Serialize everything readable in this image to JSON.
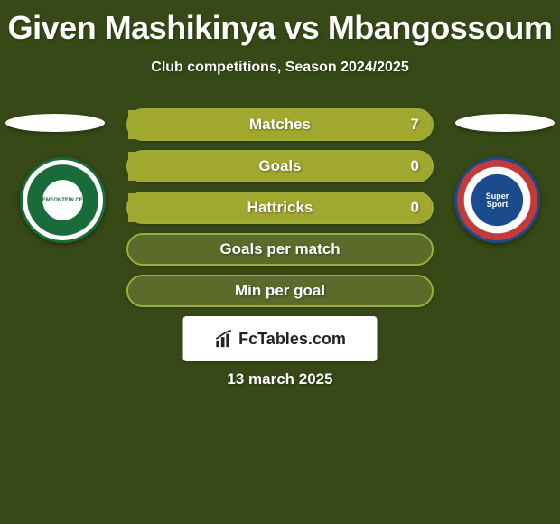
{
  "header": {
    "title": "Given Mashikinya vs Mbangossoum",
    "subtitle": "Club competitions, Season 2024/2025"
  },
  "players": {
    "left": {
      "name": "Given Mashikinya",
      "club_short": "BLOEMFONTEIN CELTIC",
      "crest_colors": [
        "#1a6b3a",
        "#ffffff"
      ]
    },
    "right": {
      "name": "Mbangossoum",
      "club_short": "SUPERSPORT UNITED FC",
      "crest_colors": [
        "#1a4b8c",
        "#c23b3b",
        "#ffffff"
      ]
    }
  },
  "stats": {
    "bar_bg": "#5b6b2a",
    "bar_border": "#9eae3a",
    "bar_fill": "#a0a830",
    "label_color": "#ffffff",
    "label_fontsize": 17,
    "rows": [
      {
        "label": "Matches",
        "left": "",
        "right": "7",
        "fill_left_pct": 0,
        "fill_right_pct": 100
      },
      {
        "label": "Goals",
        "left": "",
        "right": "0",
        "fill_left_pct": 0,
        "fill_right_pct": 100
      },
      {
        "label": "Hattricks",
        "left": "",
        "right": "0",
        "fill_left_pct": 0,
        "fill_right_pct": 100
      },
      {
        "label": "Goals per match",
        "left": "",
        "right": "",
        "fill_left_pct": 0,
        "fill_right_pct": 0
      },
      {
        "label": "Min per goal",
        "left": "",
        "right": "",
        "fill_left_pct": 0,
        "fill_right_pct": 0
      }
    ]
  },
  "footer": {
    "logo_text": "FcTables.com",
    "date": "13 march 2025"
  },
  "colors": {
    "background": "#364916",
    "title": "#ffffff"
  }
}
